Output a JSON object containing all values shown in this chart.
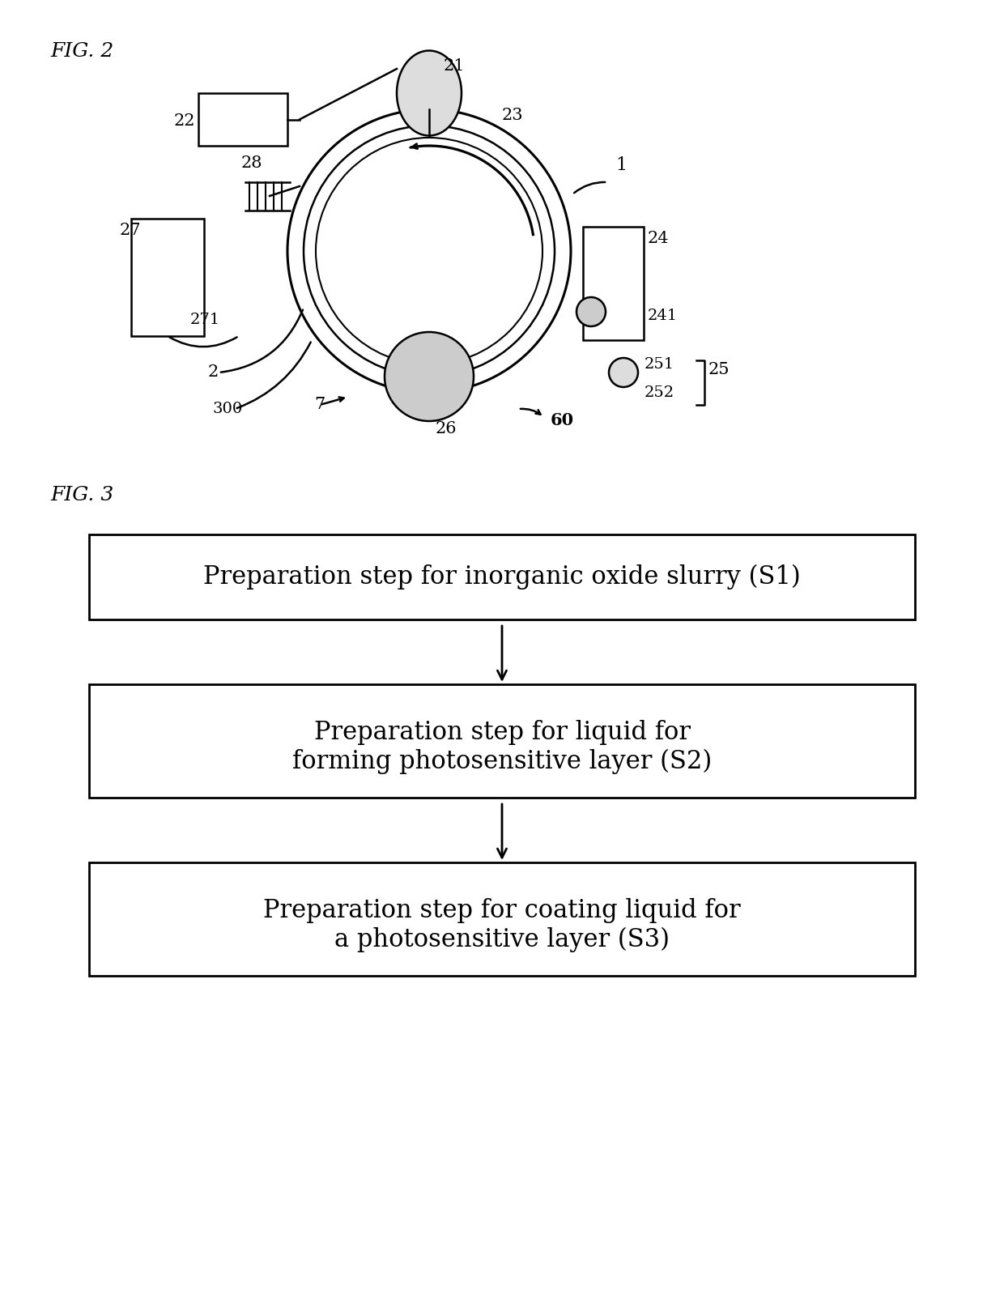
{
  "fig2_label": "FIG. 2",
  "fig3_label": "FIG. 3",
  "box1_text": "Preparation step for inorganic oxide slurry (S1)",
  "box2_line1": "Preparation step for liquid for",
  "box2_line2": "forming photosensitive layer (S2)",
  "box3_line1": "Preparation step for coating liquid for",
  "box3_line2": "a photosensitive layer (S3)",
  "bg_color": "#ffffff",
  "text_color": "#000000",
  "box_edge_color": "#000000",
  "font_size_label": 18,
  "font_size_box": 20,
  "font_family": "serif"
}
